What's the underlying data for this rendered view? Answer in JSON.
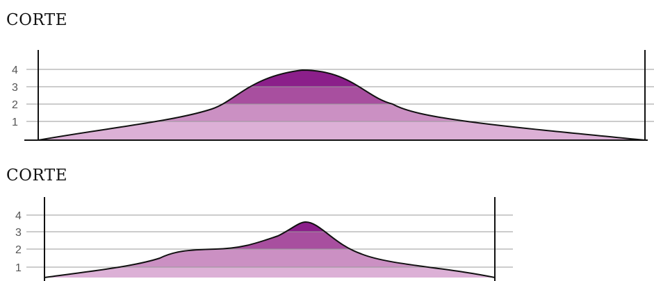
{
  "sections": [
    {
      "title": "CORTE",
      "levels": [
        "1",
        "2",
        "3",
        "4"
      ]
    },
    {
      "title": "CORTE",
      "levels": [
        "1",
        "2",
        "3",
        "4"
      ]
    }
  ],
  "colors": {
    "band_1": "#dcb0d6",
    "band_2": "#cb90c3",
    "band_3": "#a84f9f",
    "band_4": "#8b1f8a",
    "gridline": "#999999",
    "outline": "#111111"
  }
}
